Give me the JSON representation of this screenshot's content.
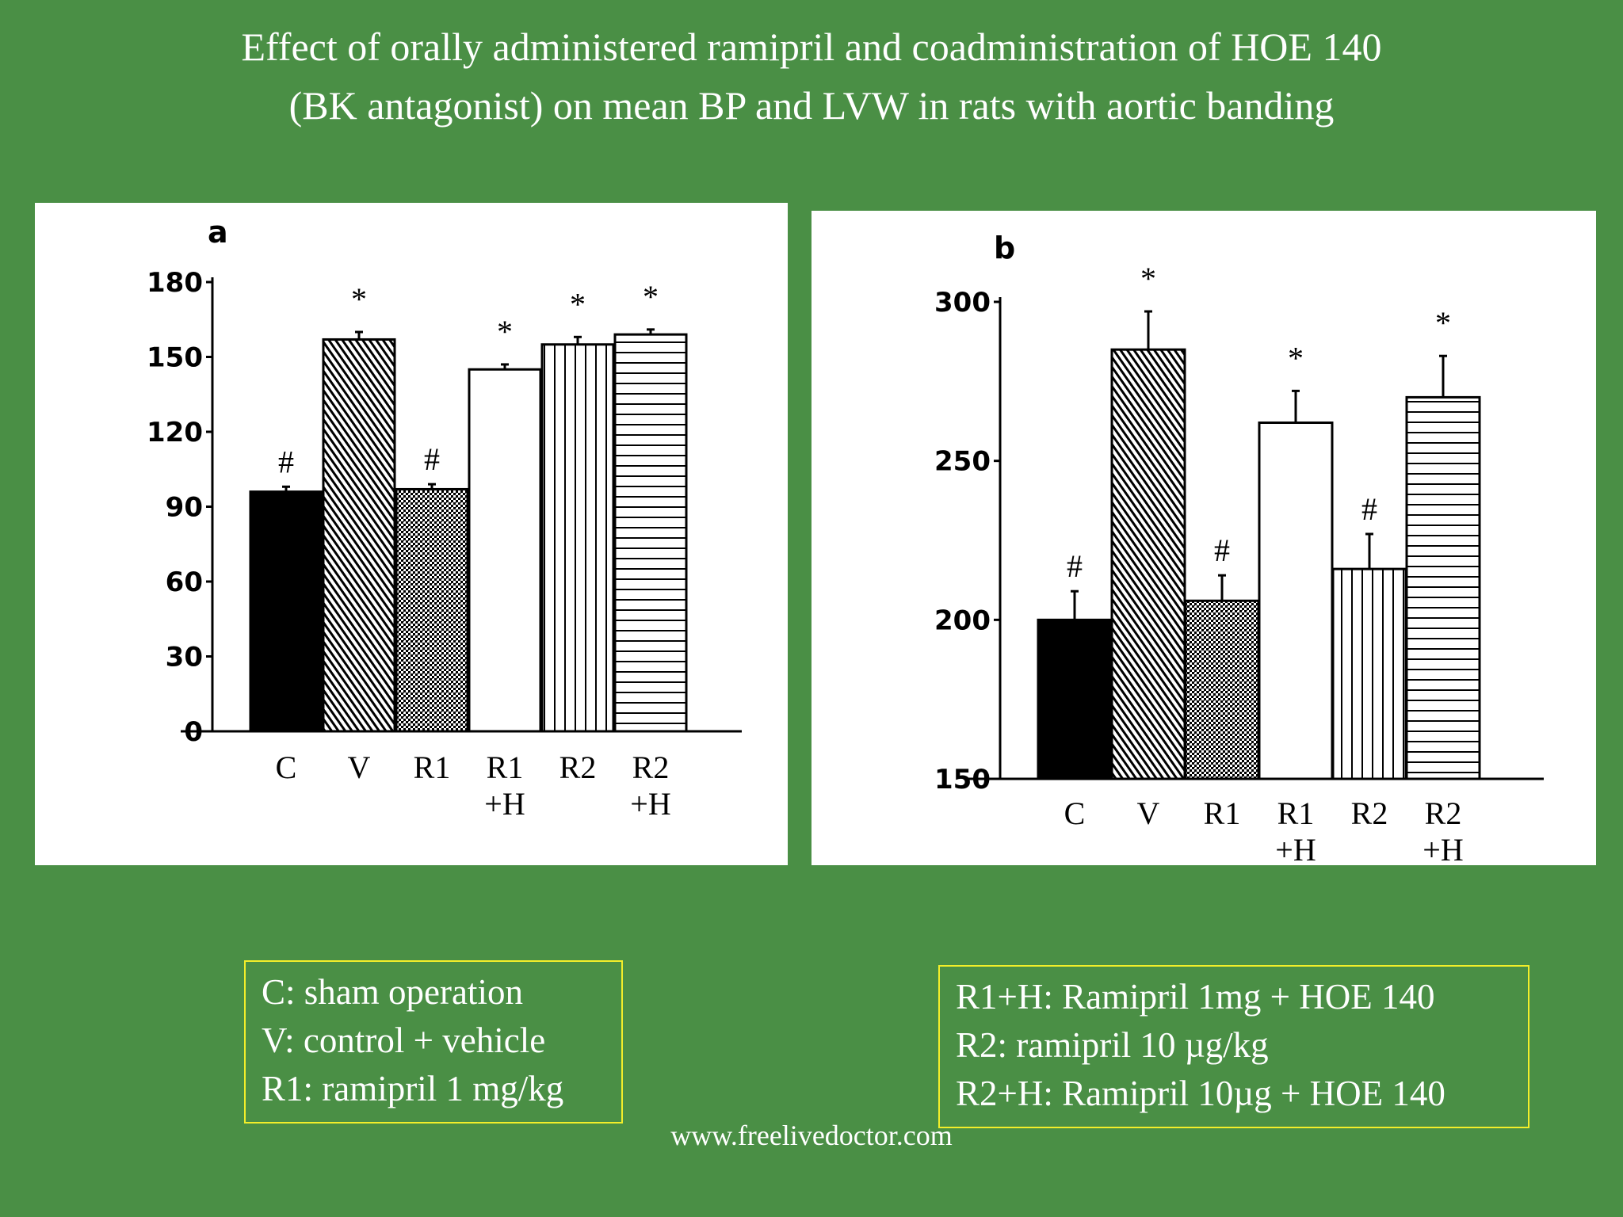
{
  "title": {
    "line1": "Effect of orally administered ramipril and coadministration of HOE 140",
    "line2": "(BK antagonist) on mean BP and LVW in rats with aortic banding"
  },
  "chart_data": [
    {
      "type": "bar",
      "panel_label": "a",
      "categories": [
        [
          "C"
        ],
        [
          "V"
        ],
        [
          "R1"
        ],
        [
          "R1",
          "+H"
        ],
        [
          "R2"
        ],
        [
          "R2",
          "+H"
        ]
      ],
      "values": [
        96,
        157,
        97,
        145,
        155,
        159
      ],
      "errors": [
        2,
        3,
        2,
        2,
        3,
        2
      ],
      "significance": [
        "#",
        "*",
        "#",
        "*",
        "*",
        "*"
      ],
      "ylim": [
        0,
        180
      ],
      "yticks": [
        "0",
        "30",
        "60",
        "90",
        "120",
        "150",
        "180"
      ],
      "patterns": [
        "solid",
        "diagonal",
        "checker",
        "blank",
        "vertical",
        "horizontal"
      ]
    },
    {
      "type": "bar",
      "panel_label": "b",
      "categories": [
        [
          "C"
        ],
        [
          "V"
        ],
        [
          "R1"
        ],
        [
          "R1",
          "+H"
        ],
        [
          "R2"
        ],
        [
          "R2",
          "+H"
        ]
      ],
      "values": [
        200,
        285,
        206,
        262,
        216,
        270
      ],
      "errors": [
        9,
        12,
        8,
        10,
        11,
        13
      ],
      "significance": [
        "#",
        "*",
        "#",
        "*",
        "#",
        "*"
      ],
      "ylim": [
        150,
        300
      ],
      "yticks": [
        "150",
        "200",
        "250",
        "300"
      ],
      "patterns": [
        "solid",
        "diagonal",
        "checker",
        "blank",
        "vertical",
        "horizontal"
      ]
    }
  ],
  "legend_left": [
    "C: sham operation",
    "V: control + vehicle",
    "R1: ramipril 1 mg/kg"
  ],
  "legend_right": [
    "R1+H: Ramipril 1mg + HOE 140",
    "R2: ramipril 10 µg/kg",
    "R2+H: Ramipril 10µg + HOE 140"
  ],
  "footer": "www.freelivedoctor.com"
}
